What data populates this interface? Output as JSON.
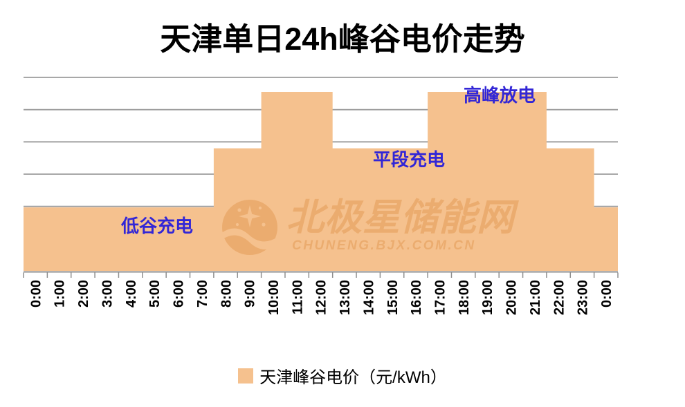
{
  "title": "天津单日24h峰谷电价走势",
  "legend": {
    "label": "天津峰谷电价（元/kWh）"
  },
  "watermark": {
    "site_name": "北极星储能网",
    "site_url": "CHUNENG.BJX.COM.CN",
    "logo_icon": "moon-stars-icon"
  },
  "colors": {
    "bar": "#F5C18E",
    "gridline": "#9B9B9B",
    "axis": "#8F8F8F",
    "annotation_text": "#3226D6",
    "tick_label": "#000000",
    "title_text": "#000000",
    "watermark": "#D9822F"
  },
  "chart_data": {
    "type": "bar",
    "title": "天津单日24h峰谷电价走势",
    "xlabel": "",
    "ylabel": "",
    "categories": [
      "0:00",
      "1:00",
      "2:00",
      "3:00",
      "4:00",
      "5:00",
      "6:00",
      "7:00",
      "8:00",
      "9:00",
      "10:00",
      "11:00",
      "12:00",
      "13:00",
      "14:00",
      "15:00",
      "16:00",
      "17:00",
      "18:00",
      "19:00",
      "20:00",
      "21:00",
      "22:00",
      "23:00",
      "0:00"
    ],
    "series": [
      {
        "name": "天津峰谷电价（元/kWh）",
        "values": [
          0.4,
          0.4,
          0.4,
          0.4,
          0.4,
          0.4,
          0.4,
          0.4,
          0.76,
          0.76,
          1.11,
          1.11,
          1.11,
          0.76,
          0.76,
          0.76,
          0.76,
          1.11,
          1.11,
          1.11,
          1.11,
          1.11,
          0.76,
          0.76,
          0.4
        ]
      }
    ],
    "ylim": [
      0,
      1.2
    ],
    "gridline_step": 0.2,
    "grid": true,
    "y_axis_labels_visible": false,
    "bar_gap": 0,
    "legend_position": "bottom",
    "annotations": [
      {
        "text": "低谷充电"
      },
      {
        "text": "平段充电"
      },
      {
        "text": "高峰放电"
      }
    ]
  }
}
